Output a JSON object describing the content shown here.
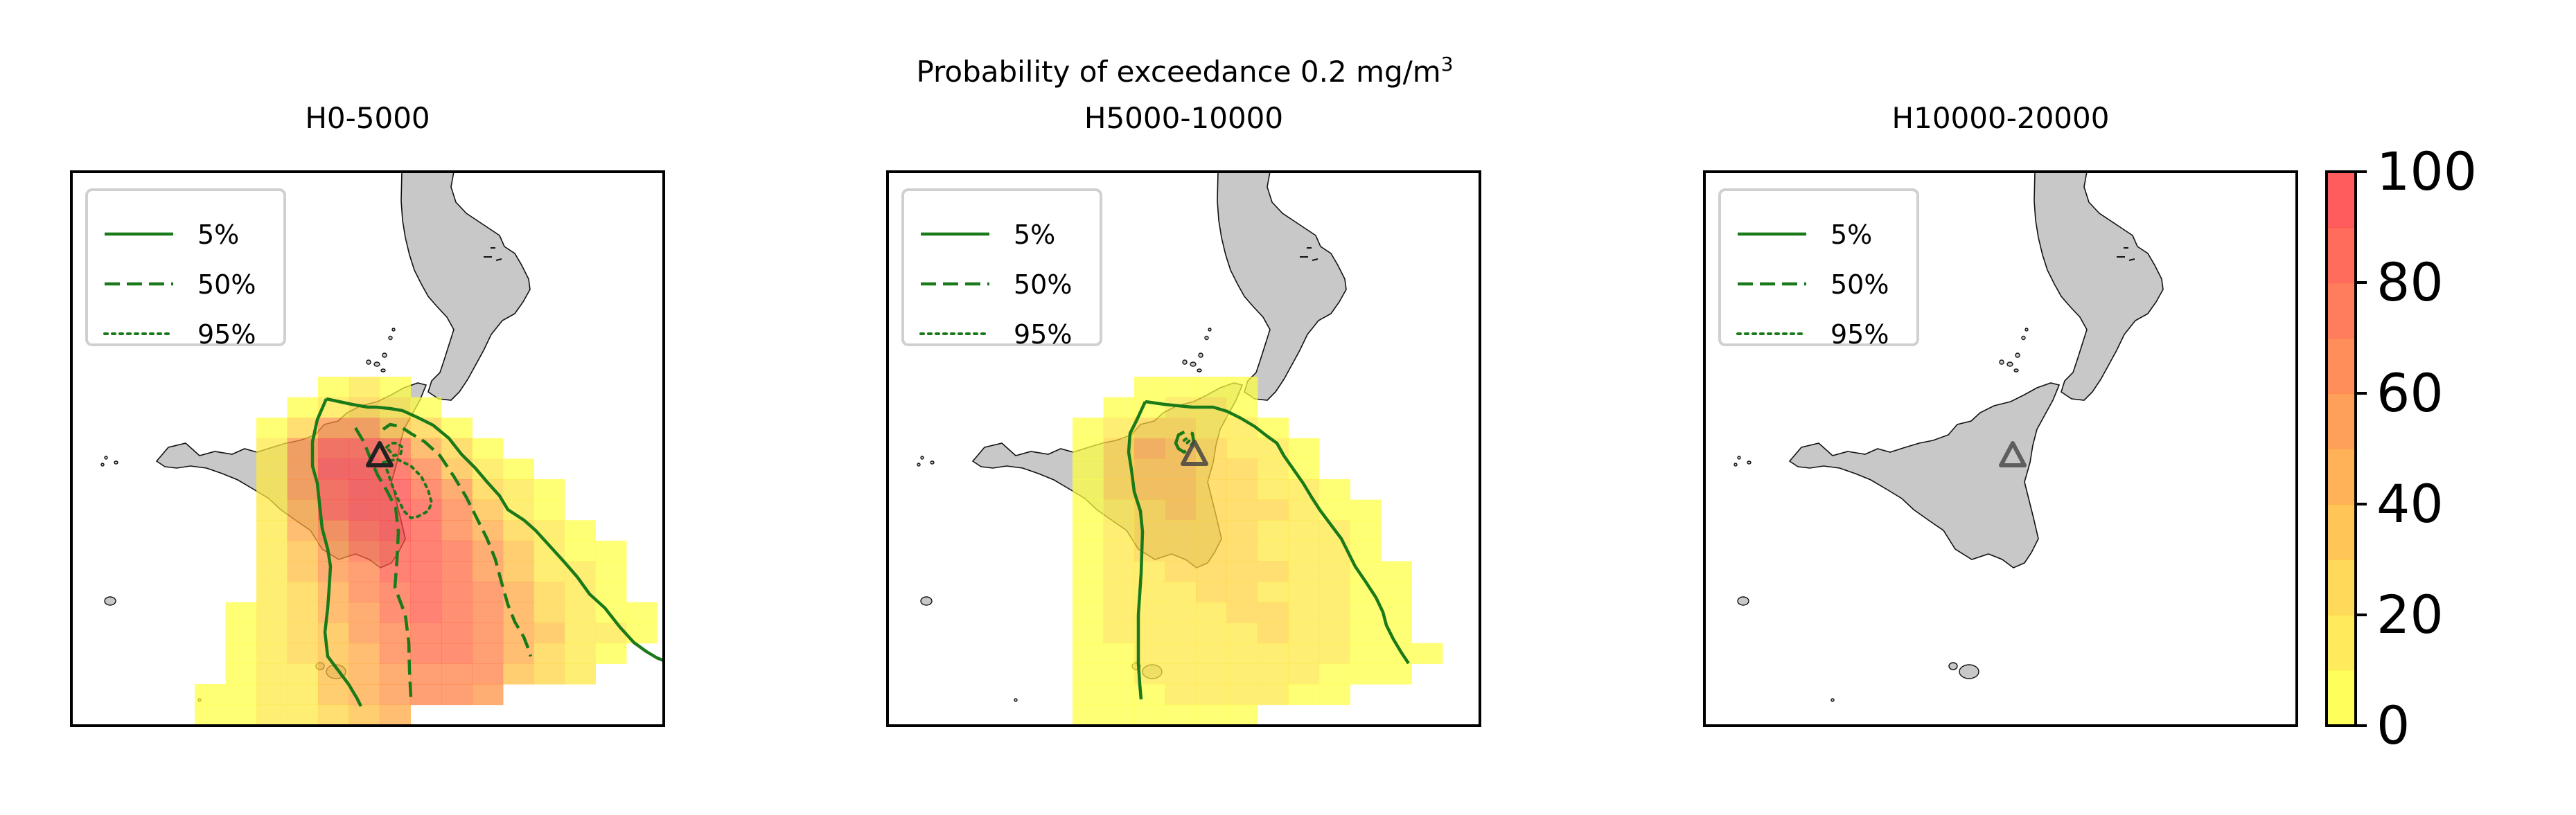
{
  "suptitle_main": "Probability of exceedance 0.2 mg/m",
  "suptitle_sup": "3",
  "colors": {
    "land": "#c8c8c8",
    "coast": "#111111",
    "contour": "#1a7a1a",
    "colormap": [
      "#ffff40",
      "#ffdd3d",
      "#ffbb3a",
      "#ff9a3c",
      "#ff7a3e",
      "#ff5a40",
      "#ff4141"
    ],
    "vent": "#444444"
  },
  "legend": [
    {
      "label": "5%",
      "style": "solid"
    },
    {
      "label": "50%",
      "style": "dashed"
    },
    {
      "label": "95%",
      "style": "dotted"
    }
  ],
  "colorbar": {
    "ticks": [
      "0",
      "20",
      "40",
      "60",
      "80",
      "100"
    ],
    "min": 0,
    "max": 100,
    "levels": 10
  },
  "chart_data": [
    {
      "type": "heatmap",
      "title": "H0-5000",
      "rows": [
        [
          0,
          0,
          0,
          0,
          0,
          0,
          0,
          0,
          0,
          0,
          0,
          0,
          0,
          0,
          0,
          0,
          0,
          0,
          0
        ],
        [
          0,
          0,
          0,
          0,
          0,
          0,
          0,
          0,
          0,
          0,
          0,
          0,
          0,
          0,
          0,
          0,
          0,
          0,
          0
        ],
        [
          0,
          0,
          0,
          0,
          0,
          0,
          0,
          0,
          0,
          0,
          0,
          0,
          0,
          0,
          0,
          0,
          0,
          0,
          0
        ],
        [
          0,
          0,
          0,
          0,
          0,
          0,
          0,
          0,
          0,
          0,
          0,
          0,
          0,
          0,
          0,
          0,
          0,
          0,
          0
        ],
        [
          0,
          0,
          0,
          0,
          0,
          0,
          0,
          0,
          0,
          0,
          0,
          0,
          0,
          0,
          0,
          0,
          0,
          0,
          0
        ],
        [
          0,
          0,
          0,
          0,
          0,
          0,
          0,
          0,
          0,
          0,
          0,
          0,
          0,
          0,
          0,
          0,
          0,
          0,
          0
        ],
        [
          0,
          0,
          0,
          0,
          0,
          0,
          0,
          0,
          0,
          0,
          0,
          0,
          0,
          0,
          0,
          0,
          0,
          0,
          0
        ],
        [
          0,
          0,
          0,
          0,
          0,
          0,
          0,
          0,
          0,
          0,
          0,
          0,
          0,
          0,
          0,
          0,
          0,
          0,
          0
        ],
        [
          0,
          0,
          0,
          0,
          0,
          0,
          0,
          0,
          0,
          0,
          0,
          0,
          0,
          0,
          0,
          0,
          0,
          0,
          0
        ],
        [
          0,
          0,
          0,
          0,
          0,
          0,
          0,
          0,
          0,
          0,
          0,
          0,
          0,
          0,
          0,
          0,
          0,
          0,
          0
        ],
        [
          0,
          0,
          0,
          0,
          0,
          0,
          0,
          0,
          5,
          10,
          5,
          0,
          0,
          0,
          0,
          0,
          0,
          0,
          0
        ],
        [
          0,
          0,
          0,
          0,
          0,
          0,
          0,
          5,
          10,
          20,
          15,
          5,
          0,
          0,
          0,
          0,
          0,
          0,
          0
        ],
        [
          0,
          0,
          0,
          0,
          0,
          0,
          5,
          25,
          55,
          50,
          30,
          20,
          5,
          0,
          0,
          0,
          0,
          0,
          0
        ],
        [
          0,
          0,
          0,
          0,
          0,
          0,
          10,
          50,
          85,
          80,
          70,
          45,
          20,
          5,
          0,
          0,
          0,
          0,
          0
        ],
        [
          0,
          0,
          0,
          0,
          0,
          0,
          15,
          50,
          90,
          95,
          85,
          60,
          35,
          15,
          5,
          0,
          0,
          0,
          0
        ],
        [
          0,
          0,
          0,
          0,
          0,
          0,
          15,
          50,
          80,
          95,
          90,
          75,
          50,
          25,
          10,
          5,
          0,
          0,
          0
        ],
        [
          0,
          0,
          0,
          0,
          0,
          0,
          15,
          45,
          80,
          90,
          90,
          80,
          60,
          35,
          15,
          5,
          0,
          0,
          0
        ],
        [
          0,
          0,
          0,
          0,
          0,
          0,
          15,
          40,
          65,
          85,
          95,
          85,
          65,
          45,
          25,
          10,
          5,
          0,
          0
        ],
        [
          0,
          0,
          0,
          0,
          0,
          0,
          15,
          35,
          55,
          75,
          85,
          85,
          70,
          50,
          30,
          15,
          5,
          5,
          0
        ],
        [
          0,
          0,
          0,
          0,
          0,
          0,
          10,
          30,
          50,
          65,
          80,
          80,
          75,
          55,
          35,
          15,
          10,
          5,
          0
        ],
        [
          0,
          0,
          0,
          0,
          0,
          0,
          10,
          25,
          45,
          60,
          75,
          85,
          75,
          60,
          40,
          20,
          10,
          5,
          0
        ],
        [
          0,
          0,
          0,
          0,
          0,
          5,
          10,
          25,
          40,
          55,
          70,
          80,
          75,
          60,
          40,
          25,
          10,
          5,
          5
        ],
        [
          0,
          0,
          0,
          0,
          0,
          5,
          10,
          20,
          35,
          50,
          65,
          75,
          75,
          65,
          45,
          30,
          15,
          10,
          5
        ],
        [
          0,
          0,
          0,
          0,
          0,
          5,
          10,
          20,
          35,
          45,
          60,
          70,
          70,
          60,
          45,
          25,
          15,
          5,
          0
        ],
        [
          0,
          0,
          0,
          0,
          0,
          5,
          10,
          15,
          30,
          45,
          55,
          65,
          65,
          60,
          35,
          20,
          10,
          0,
          0
        ],
        [
          0,
          0,
          0,
          0,
          5,
          5,
          10,
          15,
          30,
          40,
          50,
          60,
          60,
          50,
          0,
          0,
          0,
          0,
          0
        ],
        [
          0,
          0,
          0,
          0,
          5,
          5,
          10,
          15,
          25,
          35,
          45,
          0,
          0,
          0,
          0,
          0,
          0,
          0,
          0
        ]
      ]
    },
    {
      "type": "heatmap",
      "title": "H5000-10000",
      "rows": [
        [
          0,
          0,
          0,
          0,
          0,
          0,
          0,
          0,
          0,
          0,
          0,
          0,
          0,
          0,
          0,
          0,
          0,
          0,
          0
        ],
        [
          0,
          0,
          0,
          0,
          0,
          0,
          0,
          0,
          0,
          0,
          0,
          0,
          0,
          0,
          0,
          0,
          0,
          0,
          0
        ],
        [
          0,
          0,
          0,
          0,
          0,
          0,
          0,
          0,
          0,
          0,
          0,
          0,
          0,
          0,
          0,
          0,
          0,
          0,
          0
        ],
        [
          0,
          0,
          0,
          0,
          0,
          0,
          0,
          0,
          0,
          0,
          0,
          0,
          0,
          0,
          0,
          0,
          0,
          0,
          0
        ],
        [
          0,
          0,
          0,
          0,
          0,
          0,
          0,
          0,
          0,
          0,
          0,
          0,
          0,
          0,
          0,
          0,
          0,
          0,
          0
        ],
        [
          0,
          0,
          0,
          0,
          0,
          0,
          0,
          0,
          0,
          0,
          0,
          0,
          0,
          0,
          0,
          0,
          0,
          0,
          0
        ],
        [
          0,
          0,
          0,
          0,
          0,
          0,
          0,
          0,
          0,
          0,
          0,
          0,
          0,
          0,
          0,
          0,
          0,
          0,
          0
        ],
        [
          0,
          0,
          0,
          0,
          0,
          0,
          0,
          0,
          0,
          0,
          0,
          0,
          0,
          0,
          0,
          0,
          0,
          0,
          0
        ],
        [
          0,
          0,
          0,
          0,
          0,
          0,
          0,
          0,
          0,
          0,
          0,
          0,
          0,
          0,
          0,
          0,
          0,
          0,
          0
        ],
        [
          0,
          0,
          0,
          0,
          0,
          0,
          0,
          0,
          0,
          0,
          0,
          0,
          0,
          0,
          0,
          0,
          0,
          0,
          0
        ],
        [
          0,
          0,
          0,
          0,
          0,
          0,
          0,
          0,
          5,
          5,
          5,
          5,
          0,
          0,
          0,
          0,
          0,
          0,
          0
        ],
        [
          0,
          0,
          0,
          0,
          0,
          0,
          0,
          5,
          5,
          10,
          10,
          5,
          0,
          0,
          0,
          0,
          0,
          0,
          0
        ],
        [
          0,
          0,
          0,
          0,
          0,
          0,
          5,
          15,
          25,
          20,
          15,
          10,
          5,
          0,
          0,
          0,
          0,
          0,
          0
        ],
        [
          0,
          0,
          0,
          0,
          0,
          0,
          5,
          25,
          40,
          30,
          20,
          15,
          10,
          5,
          0,
          0,
          0,
          0,
          0
        ],
        [
          0,
          0,
          0,
          0,
          0,
          0,
          5,
          20,
          35,
          35,
          25,
          20,
          15,
          5,
          0,
          0,
          0,
          0,
          0
        ],
        [
          0,
          0,
          0,
          0,
          0,
          0,
          5,
          20,
          30,
          30,
          25,
          20,
          15,
          10,
          5,
          0,
          0,
          0,
          0
        ],
        [
          0,
          0,
          0,
          0,
          0,
          0,
          5,
          15,
          25,
          30,
          25,
          20,
          20,
          15,
          5,
          5,
          0,
          0,
          0
        ],
        [
          0,
          0,
          0,
          0,
          0,
          0,
          5,
          15,
          25,
          25,
          25,
          20,
          15,
          15,
          10,
          5,
          0,
          0,
          0
        ],
        [
          0,
          0,
          0,
          0,
          0,
          0,
          5,
          10,
          20,
          25,
          25,
          20,
          15,
          15,
          10,
          5,
          0,
          0,
          0
        ],
        [
          0,
          0,
          0,
          0,
          0,
          0,
          5,
          10,
          15,
          20,
          20,
          20,
          20,
          15,
          10,
          5,
          5,
          0,
          0
        ],
        [
          0,
          0,
          0,
          0,
          0,
          0,
          5,
          10,
          15,
          15,
          20,
          20,
          15,
          15,
          10,
          5,
          5,
          0,
          0
        ],
        [
          0,
          0,
          0,
          0,
          0,
          0,
          5,
          10,
          15,
          15,
          15,
          20,
          20,
          15,
          10,
          5,
          5,
          0,
          0
        ],
        [
          0,
          0,
          0,
          0,
          0,
          0,
          5,
          10,
          10,
          15,
          15,
          15,
          20,
          15,
          10,
          5,
          5,
          0,
          0
        ],
        [
          0,
          0,
          0,
          0,
          0,
          0,
          5,
          5,
          10,
          10,
          15,
          15,
          15,
          10,
          10,
          5,
          5,
          5,
          0
        ],
        [
          0,
          0,
          0,
          0,
          0,
          0,
          5,
          5,
          10,
          10,
          10,
          15,
          10,
          10,
          5,
          5,
          5,
          0,
          0
        ],
        [
          0,
          0,
          0,
          0,
          0,
          0,
          5,
          5,
          5,
          10,
          10,
          10,
          10,
          5,
          5,
          0,
          0,
          0,
          0
        ],
        [
          0,
          0,
          0,
          0,
          0,
          0,
          5,
          5,
          5,
          5,
          5,
          5,
          0,
          0,
          0,
          0,
          0,
          0,
          0
        ]
      ]
    },
    {
      "type": "heatmap",
      "title": "H10000-20000",
      "rows": []
    }
  ]
}
